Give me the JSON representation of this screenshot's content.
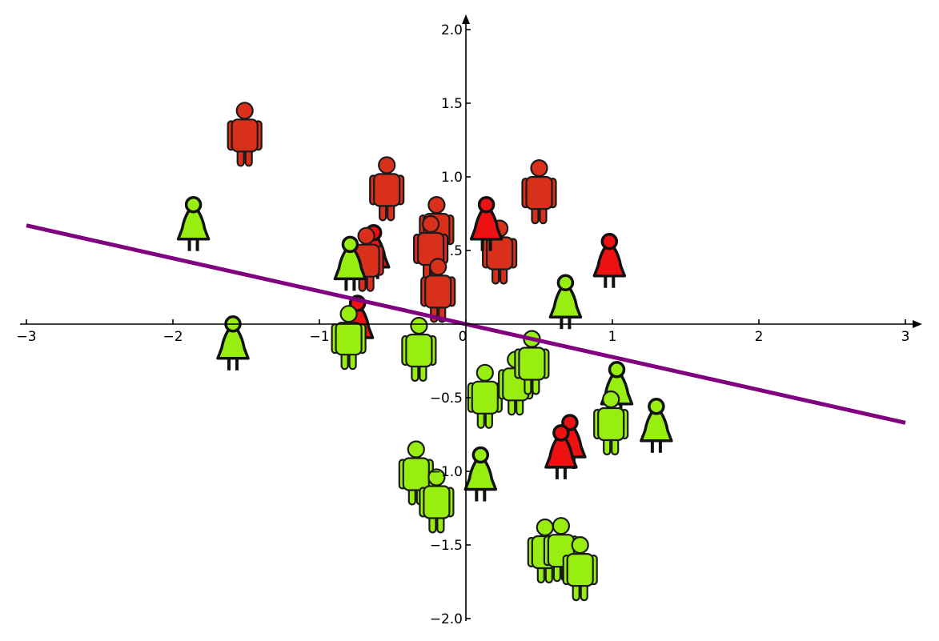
{
  "colors": {
    "background": "#ffffff",
    "class_red": "#d9301c",
    "class_red_female": "#ee1111",
    "class_green": "#99ee11",
    "boundary_line": "#800080",
    "axis": "#000000",
    "outline": "#1a1a1a"
  },
  "chart_data": {
    "type": "scatter",
    "xlim": [
      -3,
      3
    ],
    "ylim": [
      -2,
      2
    ],
    "x_ticks": [
      -3,
      -2,
      -1,
      0,
      1,
      2,
      3
    ],
    "x_tick_labels": [
      "−3",
      "−2",
      "−1",
      "0",
      "1",
      "2",
      "3"
    ],
    "y_ticks": [
      -2,
      -1.5,
      -1,
      -0.5,
      0.5,
      1,
      1.5,
      2
    ],
    "y_tick_labels": [
      "−2.0",
      "−1.5",
      "−1.0",
      "−0.5",
      ".5",
      "1.0",
      "1.5",
      "2.0"
    ],
    "grid": false,
    "axes_style": "centered-spines-with-arrows",
    "marker_icons": [
      "male-person-icon",
      "female-person-icon"
    ],
    "series": [
      {
        "color": "red",
        "points": [
          {
            "x": -1.51,
            "y": 1.27,
            "shape": "male"
          },
          {
            "x": -0.54,
            "y": 0.9,
            "shape": "male"
          },
          {
            "x": -0.2,
            "y": 0.63,
            "shape": "male"
          },
          {
            "x": -0.24,
            "y": 0.5,
            "shape": "male"
          },
          {
            "x": -0.19,
            "y": 0.21,
            "shape": "male"
          },
          {
            "x": 0.23,
            "y": 0.47,
            "shape": "male"
          },
          {
            "x": 0.5,
            "y": 0.88,
            "shape": "male"
          },
          {
            "x": -0.63,
            "y": 0.48,
            "shape": "female"
          },
          {
            "x": -0.68,
            "y": 0.42,
            "shape": "male"
          },
          {
            "x": -0.74,
            "y": 0.0,
            "shape": "female"
          },
          {
            "x": 0.14,
            "y": 0.67,
            "shape": "female"
          },
          {
            "x": 0.98,
            "y": 0.42,
            "shape": "female"
          },
          {
            "x": 0.71,
            "y": -0.81,
            "shape": "female"
          },
          {
            "x": 0.65,
            "y": -0.88,
            "shape": "female"
          }
        ]
      },
      {
        "color": "green",
        "points": [
          {
            "x": -1.86,
            "y": 0.67,
            "shape": "female"
          },
          {
            "x": -1.59,
            "y": -0.14,
            "shape": "female"
          },
          {
            "x": -0.79,
            "y": 0.4,
            "shape": "female"
          },
          {
            "x": -0.8,
            "y": -0.11,
            "shape": "male"
          },
          {
            "x": -0.32,
            "y": -0.19,
            "shape": "male"
          },
          {
            "x": 0.13,
            "y": -0.51,
            "shape": "male"
          },
          {
            "x": 0.34,
            "y": -0.42,
            "shape": "male"
          },
          {
            "x": 0.45,
            "y": -0.28,
            "shape": "male"
          },
          {
            "x": 0.68,
            "y": 0.14,
            "shape": "female"
          },
          {
            "x": 1.03,
            "y": -0.45,
            "shape": "female"
          },
          {
            "x": 1.3,
            "y": -0.7,
            "shape": "female"
          },
          {
            "x": 0.99,
            "y": -0.69,
            "shape": "male"
          },
          {
            "x": 0.1,
            "y": -1.03,
            "shape": "female"
          },
          {
            "x": -0.34,
            "y": -1.03,
            "shape": "male"
          },
          {
            "x": -0.2,
            "y": -1.22,
            "shape": "male"
          },
          {
            "x": 0.54,
            "y": -1.56,
            "shape": "male"
          },
          {
            "x": 0.65,
            "y": -1.55,
            "shape": "male"
          },
          {
            "x": 0.78,
            "y": -1.68,
            "shape": "male"
          }
        ]
      }
    ],
    "line": {
      "x": [
        -3,
        3
      ],
      "y": [
        0.67,
        -0.67
      ]
    }
  }
}
